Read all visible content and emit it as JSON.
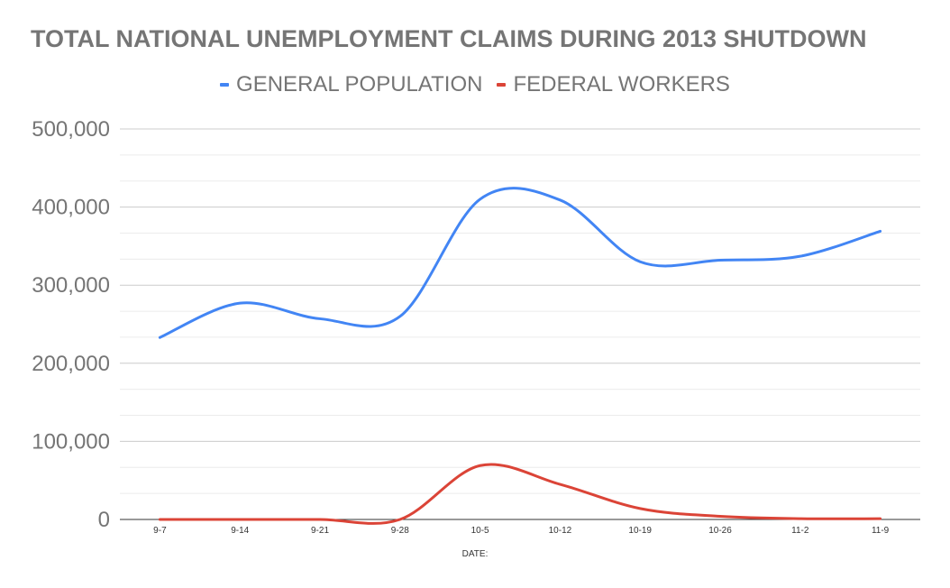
{
  "chart_data": {
    "type": "line",
    "title": "TOTAL NATIONAL UNEMPLOYMENT CLAIMS DURING 2013 SHUTDOWN",
    "xlabel": "DATE:",
    "ylabel": "",
    "categories": [
      "9-7",
      "9-14",
      "9-21",
      "9-28",
      "10-5",
      "10-12",
      "10-19",
      "10-26",
      "11-2",
      "11-9"
    ],
    "ylim": [
      0,
      500000
    ],
    "yticks": [
      0,
      100000,
      200000,
      300000,
      400000,
      500000
    ],
    "ytick_labels": [
      "0",
      "100,000",
      "200,000",
      "300,000",
      "400,000",
      "500,000"
    ],
    "grid": true,
    "smooth": true,
    "legend_position": "top",
    "series": [
      {
        "name": "GENERAL POPULATION",
        "color": "#4285f4",
        "values": [
          233000,
          277000,
          257000,
          260000,
          410000,
          409000,
          330000,
          332000,
          337000,
          369000
        ]
      },
      {
        "name": "FEDERAL WORKERS",
        "color": "#db4437",
        "values": [
          0,
          0,
          0,
          0,
          69000,
          45000,
          14000,
          4000,
          1000,
          1000
        ]
      }
    ]
  }
}
